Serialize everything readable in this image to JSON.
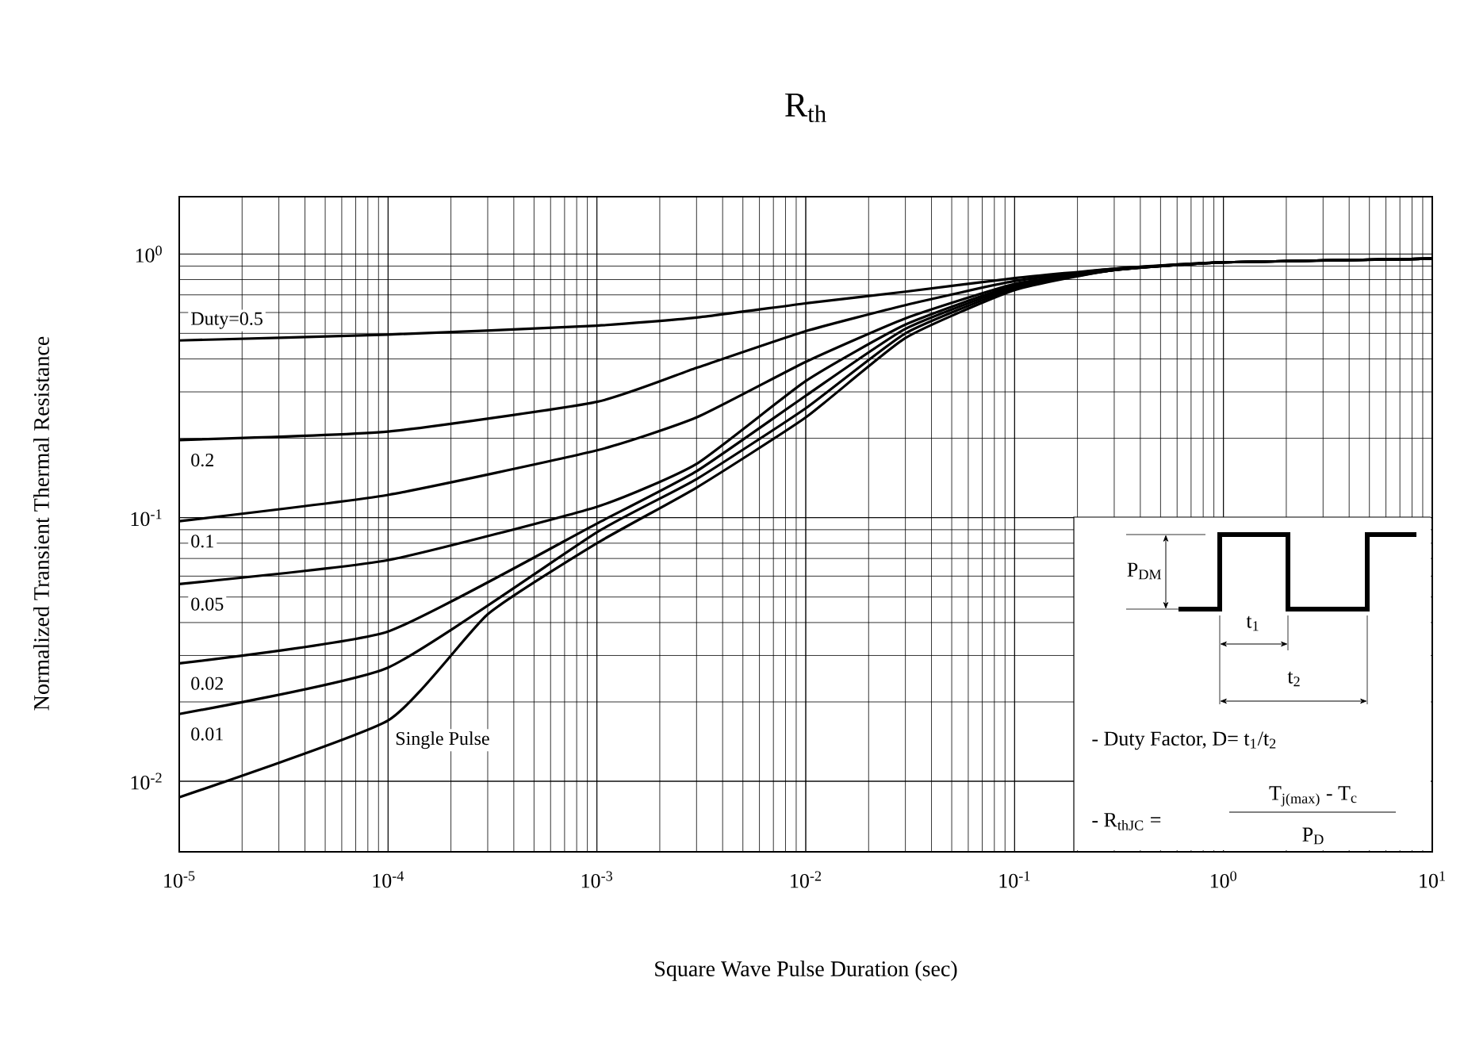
{
  "chart_data": {
    "type": "line",
    "title": "R$_{th}$",
    "xlabel": "Square Wave Pulse Duration (sec)",
    "ylabel": "Normalized Transient Thermal Resistance",
    "x": [
      1e-05,
      0.0001,
      0.001,
      0.003,
      0.01,
      0.03,
      0.1,
      0.3,
      1,
      10
    ],
    "series": [
      {
        "name": "Duty=0.5",
        "color": "#000000",
        "values": [
          0.47,
          0.495,
          0.535,
          0.574,
          0.65,
          0.72,
          0.81,
          0.88,
          0.93,
          0.96
        ]
      },
      {
        "name": "0.2",
        "color": "#000000",
        "values": [
          0.197,
          0.212,
          0.275,
          0.37,
          0.51,
          0.64,
          0.79,
          0.88,
          0.93,
          0.96
        ]
      },
      {
        "name": "0.1",
        "color": "#000000",
        "values": [
          0.097,
          0.122,
          0.18,
          0.24,
          0.39,
          0.57,
          0.77,
          0.87,
          0.93,
          0.96
        ]
      },
      {
        "name": "0.05",
        "color": "#000000",
        "values": [
          0.056,
          0.069,
          0.11,
          0.16,
          0.33,
          0.54,
          0.76,
          0.87,
          0.93,
          0.96
        ]
      },
      {
        "name": "0.02",
        "color": "#000000",
        "values": [
          0.028,
          0.037,
          0.095,
          0.15,
          0.29,
          0.52,
          0.75,
          0.87,
          0.93,
          0.96
        ]
      },
      {
        "name": "0.01",
        "color": "#000000",
        "values": [
          0.018,
          0.027,
          0.088,
          0.14,
          0.26,
          0.5,
          0.74,
          0.87,
          0.93,
          0.96
        ]
      },
      {
        "name": "Single Pulse",
        "color": "#000000",
        "x": [
          1e-05,
          0.0001,
          0.0003,
          0.001,
          0.003,
          0.01,
          0.03,
          0.1,
          0.3,
          1,
          10
        ],
        "values": [
          0.0087,
          0.017,
          0.043,
          0.08,
          0.13,
          0.24,
          0.48,
          0.73,
          0.87,
          0.93,
          0.96
        ]
      }
    ],
    "xlim": [
      1e-05,
      10
    ],
    "ylim": [
      0.0054,
      1.65
    ],
    "xticks": [
      {
        "value": 1e-05,
        "label": "10$^{-5}$"
      },
      {
        "value": 0.0001,
        "label": "10$^{-4}$"
      },
      {
        "value": 0.001,
        "label": "10$^{-3}$"
      },
      {
        "value": 0.01,
        "label": "10$^{-2}$"
      },
      {
        "value": 0.1,
        "label": "10$^{-1}$"
      },
      {
        "value": 1,
        "label": "10$^{0}$"
      },
      {
        "value": 10,
        "label": "10$^{1}$"
      }
    ],
    "yticks": [
      {
        "value": 0.01,
        "label": "10$^{-2}$"
      },
      {
        "value": 0.1,
        "label": "10$^{-1}$"
      },
      {
        "value": 1,
        "label": "10$^{0}$"
      }
    ],
    "log": "xy",
    "grid": true,
    "marker": "none",
    "line_style": "solid",
    "annotations": [
      "P$_{DM}$",
      "t$_{1}$",
      "t$_{2}$",
      "- Duty Factor, D= t$_{1}$/t$_{2}$",
      "- R$_{thJC}$ =",
      "T$_{j(max)}$ - T$_{c}$",
      "P$_{D}$"
    ]
  }
}
